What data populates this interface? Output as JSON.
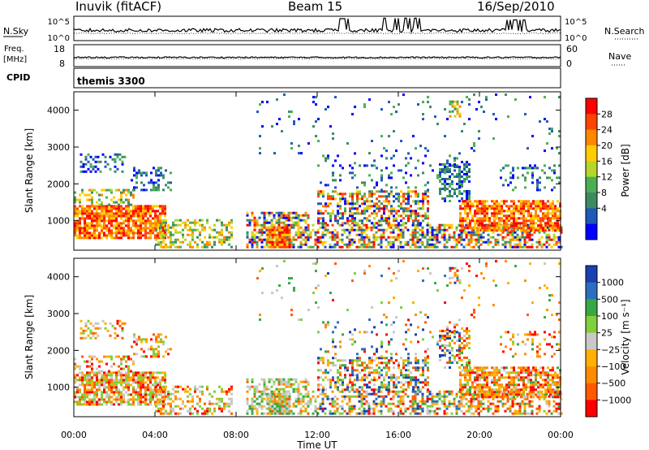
{
  "header": {
    "station": "Inuvik (fitACF)",
    "beam": "Beam 15",
    "date": "16/Sep/2010"
  },
  "panels": {
    "nsky": {
      "left_label": "N.Sky",
      "left_ticks": [
        "10^5",
        "10^0"
      ],
      "right_ticks": [
        "10^5",
        "10^0"
      ],
      "right_label": "N.Search"
    },
    "freq": {
      "left_label_line1": "Freq.",
      "left_label_line2": "[MHz]",
      "left_ticks": [
        "18",
        "8"
      ],
      "right_ticks": [
        "60",
        "0"
      ],
      "right_label": "Nave"
    },
    "cpid": {
      "label": "CPID",
      "value": "themis 3300"
    }
  },
  "chart_data": [
    {
      "type": "heatmap",
      "name": "power",
      "ylabel": "Slant Range [km]",
      "xlabel": "",
      "ylim": [
        200,
        4500
      ],
      "yticks": [
        "1000",
        "2000",
        "3000",
        "4000"
      ],
      "colorbar": {
        "label": "Power [dB]",
        "ticks": [
          "28",
          "24",
          "20",
          "16",
          "12",
          "8",
          "4"
        ],
        "colors": [
          "#ff0000",
          "#ff4400",
          "#ff8800",
          "#ffcc00",
          "#b5d62a",
          "#4aae54",
          "#3d8a62",
          "#1f59b8",
          "#0000ff"
        ]
      }
    },
    {
      "type": "heatmap",
      "name": "velocity",
      "ylabel": "Slant Range [km]",
      "xlabel": "Time UT",
      "ylim": [
        200,
        4500
      ],
      "yticks": [
        "1000",
        "2000",
        "3000",
        "4000"
      ],
      "xticks": [
        "00:00",
        "04:00",
        "08:00",
        "12:00",
        "16:00",
        "20:00",
        "00:00"
      ],
      "colorbar": {
        "label": "Velocity [m s⁻¹]",
        "ticks": [
          "1000",
          "500",
          "100",
          "25",
          "−25",
          "−100",
          "−500",
          "−1000"
        ],
        "colors": [
          "#1a3fb0",
          "#2a6fbf",
          "#39a844",
          "#7fd03a",
          "#c8c8c8",
          "#ffb000",
          "#ff8c00",
          "#ff5a00",
          "#ff0000"
        ]
      }
    }
  ]
}
